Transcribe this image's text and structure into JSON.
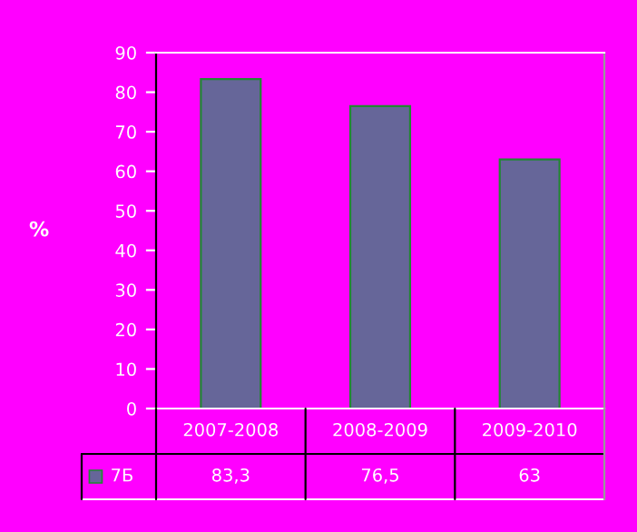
{
  "chart_data": {
    "type": "bar",
    "ylabel": "%",
    "categories": [
      "2007-2008",
      "2008-2009",
      "2009-2010"
    ],
    "series": [
      {
        "name": "7Б",
        "color": "#666699",
        "values": [
          83.3,
          76.5,
          63
        ],
        "value_labels": [
          "83,3",
          "76,5",
          "63"
        ]
      }
    ],
    "ylim": [
      0,
      90
    ],
    "yticks": [
      0,
      10,
      20,
      30,
      40,
      50,
      60,
      70,
      80,
      90
    ],
    "legend": "bottom left"
  }
}
